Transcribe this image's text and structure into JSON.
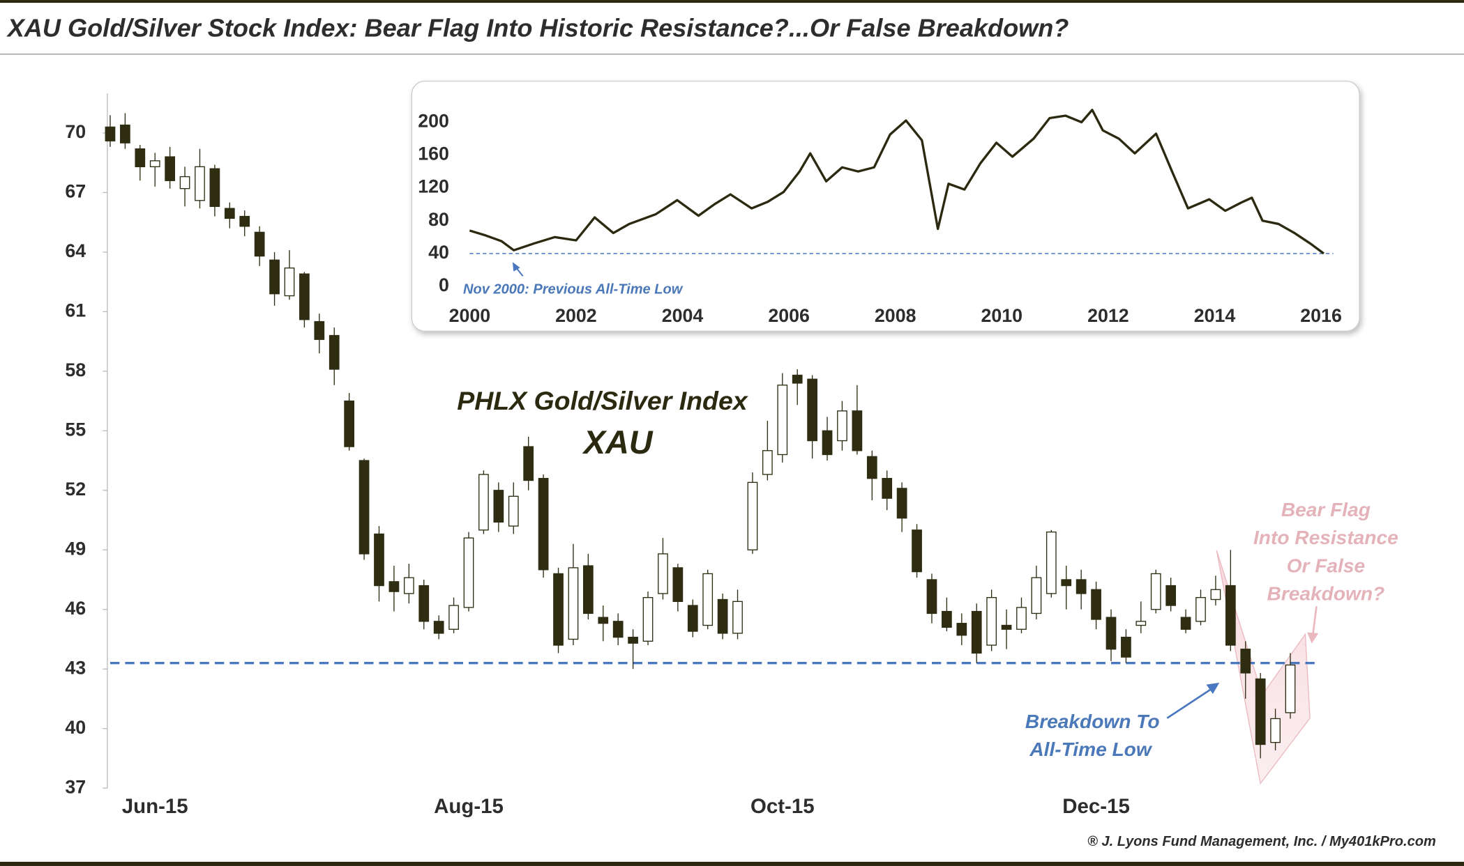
{
  "title": "XAU Gold/Silver Stock Index: Bear Flag Into Historic Resistance?...Or False Breakdown?",
  "credit": "® J. Lyons Fund Management, Inc. / My401kPro.com",
  "chart_data": [
    {
      "type": "candlestick",
      "title": "PHLX Gold/Silver Index",
      "subtitle": "XAU",
      "categories": [
        null,
        null,
        null,
        "Jun-15",
        null,
        null,
        null,
        null,
        null,
        null,
        null,
        null,
        null,
        null,
        null,
        null,
        null,
        null,
        null,
        null,
        null,
        null,
        null,
        null,
        "Aug-15",
        null,
        null,
        null,
        null,
        null,
        null,
        null,
        null,
        null,
        null,
        null,
        null,
        null,
        null,
        null,
        null,
        null,
        null,
        null,
        null,
        "Oct-15",
        null,
        null,
        null,
        null,
        null,
        null,
        null,
        null,
        null,
        null,
        null,
        null,
        null,
        null,
        null,
        null,
        null,
        null,
        null,
        null,
        "Dec-15",
        null,
        null,
        null,
        null,
        null,
        null,
        null,
        null,
        null,
        null,
        null,
        null,
        null
      ],
      "open": [
        70.3,
        70.4,
        69.2,
        68.3,
        68.8,
        67.2,
        66.6,
        68.2,
        66.2,
        65.8,
        65.0,
        63.6,
        61.8,
        62.9,
        60.5,
        59.8,
        56.5,
        53.5,
        49.8,
        47.4,
        46.8,
        47.2,
        45.4,
        45.0,
        46.1,
        50.0,
        52.0,
        50.2,
        54.2,
        52.6,
        47.8,
        44.5,
        48.2,
        45.6,
        45.4,
        44.6,
        44.4,
        46.8,
        48.1,
        46.2,
        45.2,
        46.5,
        44.8,
        49.0,
        52.8,
        53.8,
        57.8,
        57.6,
        55.0,
        54.5,
        56.0,
        53.7,
        52.6,
        52.1,
        50.0,
        47.5,
        45.9,
        45.3,
        45.9,
        44.2,
        45.2,
        45.0,
        45.8,
        46.8,
        47.5,
        47.5,
        47.0,
        45.6,
        44.6,
        45.2,
        46.0,
        47.2,
        45.6,
        45.4,
        46.5,
        47.2,
        44.0,
        42.5,
        39.3,
        40.8
      ],
      "high": [
        70.9,
        71.0,
        69.4,
        69.0,
        69.3,
        68.3,
        69.2,
        68.4,
        66.5,
        66.1,
        65.3,
        64.0,
        64.1,
        63.0,
        60.9,
        60.2,
        56.9,
        53.6,
        50.2,
        48.2,
        48.3,
        47.5,
        45.7,
        46.6,
        49.9,
        53.0,
        52.4,
        52.4,
        54.7,
        52.8,
        48.1,
        49.3,
        48.8,
        46.2,
        45.8,
        45.0,
        46.9,
        49.6,
        48.3,
        46.5,
        48.0,
        46.8,
        47.0,
        52.9,
        55.5,
        57.9,
        58.1,
        57.8,
        55.7,
        56.5,
        57.3,
        54.0,
        53.0,
        52.4,
        50.3,
        47.8,
        46.6,
        45.8,
        46.3,
        47.0,
        46.0,
        46.6,
        48.2,
        50.0,
        48.2,
        48.0,
        47.4,
        46.0,
        45.0,
        46.4,
        48.0,
        47.6,
        46.0,
        47.0,
        47.7,
        49.0,
        44.4,
        42.8,
        41.0,
        43.8
      ],
      "low": [
        69.3,
        69.2,
        67.6,
        67.3,
        67.2,
        66.3,
        66.2,
        65.8,
        65.2,
        64.8,
        63.3,
        61.3,
        61.6,
        60.2,
        58.9,
        57.3,
        54.0,
        48.5,
        46.4,
        45.9,
        46.3,
        45.0,
        44.5,
        44.8,
        45.9,
        49.8,
        49.9,
        49.8,
        52.0,
        47.6,
        43.8,
        44.2,
        45.5,
        44.4,
        44.2,
        43.0,
        44.2,
        46.5,
        45.9,
        44.6,
        45.0,
        44.5,
        44.5,
        48.8,
        52.5,
        53.4,
        56.3,
        53.6,
        53.5,
        54.0,
        53.8,
        51.5,
        51.0,
        49.9,
        47.6,
        45.3,
        44.9,
        44.2,
        43.3,
        43.9,
        44.0,
        44.8,
        45.5,
        46.6,
        46.0,
        46.0,
        45.0,
        43.4,
        43.3,
        44.8,
        45.8,
        45.9,
        44.8,
        45.2,
        46.2,
        43.9,
        41.5,
        38.5,
        38.9,
        40.5
      ],
      "close": [
        69.6,
        69.5,
        68.3,
        68.6,
        67.6,
        67.8,
        68.3,
        66.3,
        65.7,
        65.3,
        63.8,
        61.9,
        63.2,
        60.6,
        59.6,
        58.1,
        54.2,
        48.8,
        47.2,
        46.9,
        47.6,
        45.4,
        44.8,
        46.2,
        49.6,
        52.8,
        50.4,
        51.7,
        52.5,
        48.0,
        44.2,
        48.1,
        45.8,
        45.3,
        44.6,
        44.3,
        46.6,
        48.8,
        46.4,
        44.9,
        47.8,
        44.8,
        46.4,
        52.4,
        54.0,
        57.3,
        57.4,
        54.5,
        53.8,
        56.0,
        54.0,
        52.6,
        51.6,
        50.6,
        47.9,
        45.8,
        45.1,
        44.7,
        43.8,
        46.6,
        45.0,
        46.1,
        47.6,
        49.9,
        47.2,
        46.8,
        45.5,
        44.0,
        43.6,
        45.4,
        47.8,
        46.2,
        45.0,
        46.6,
        47.0,
        44.2,
        42.8,
        39.2,
        40.5,
        43.2
      ],
      "ylim": [
        37,
        72
      ],
      "yticks": [
        37,
        40,
        43,
        46,
        49,
        52,
        55,
        58,
        61,
        64,
        67,
        70
      ],
      "support_level": 43.3,
      "annotations": [
        "Breakdown To",
        "All-Time Low",
        "Bear Flag",
        "Into Resistance",
        "Or False",
        "Breakdown?"
      ],
      "colors": {
        "down": "#2e2d12",
        "up": "#ffffff",
        "support": "#4a78c0"
      }
    },
    {
      "type": "line",
      "color": "#2b2a10",
      "x": [
        2000.0,
        2000.3,
        2000.6,
        2000.83,
        2001.2,
        2001.6,
        2002.0,
        2002.35,
        2002.7,
        2003.0,
        2003.5,
        2003.9,
        2004.3,
        2004.6,
        2004.9,
        2005.3,
        2005.6,
        2005.9,
        2006.2,
        2006.4,
        2006.7,
        2007.0,
        2007.3,
        2007.6,
        2007.9,
        2008.2,
        2008.5,
        2008.8,
        2009.0,
        2009.3,
        2009.6,
        2009.9,
        2010.2,
        2010.6,
        2010.9,
        2011.2,
        2011.5,
        2011.7,
        2011.9,
        2012.2,
        2012.5,
        2012.9,
        2013.2,
        2013.5,
        2013.9,
        2014.2,
        2014.5,
        2014.7,
        2014.9,
        2015.2,
        2015.5,
        2015.8,
        2016.05
      ],
      "values": [
        68,
        62,
        55,
        44,
        52,
        60,
        56,
        84,
        65,
        76,
        88,
        105,
        86,
        100,
        112,
        95,
        103,
        115,
        140,
        162,
        128,
        145,
        140,
        145,
        185,
        202,
        178,
        70,
        125,
        118,
        150,
        175,
        158,
        180,
        205,
        208,
        200,
        215,
        190,
        180,
        162,
        186,
        140,
        95,
        106,
        92,
        102,
        108,
        80,
        76,
        65,
        52,
        40
      ],
      "xlim": [
        2000,
        2016.3
      ],
      "xticks": [
        2000,
        2002,
        2004,
        2006,
        2008,
        2010,
        2012,
        2014,
        2016
      ],
      "ylim": [
        0,
        230
      ],
      "yticks": [
        0,
        40,
        80,
        120,
        160,
        200
      ],
      "reference_level": 40,
      "annotation": "Nov 2000: Previous All-Time Low"
    }
  ]
}
